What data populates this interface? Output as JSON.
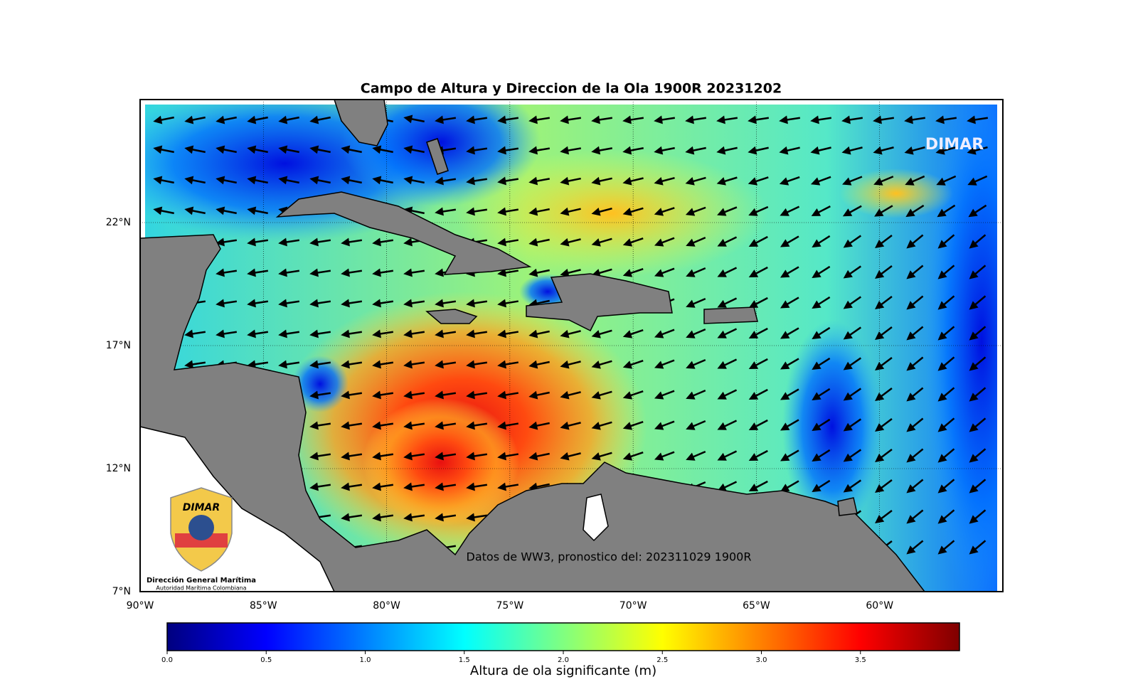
{
  "map": {
    "title": "Campo de Altura y Direccion de la Ola 1900R 20231202",
    "xlim": [
      -90,
      -55
    ],
    "ylim": [
      7,
      27
    ],
    "xticks": [
      {
        "value": -90,
        "label": "90°W"
      },
      {
        "value": -85,
        "label": "85°W"
      },
      {
        "value": -80,
        "label": "80°W"
      },
      {
        "value": -75,
        "label": "75°W"
      },
      {
        "value": -70,
        "label": "70°W"
      },
      {
        "value": -65,
        "label": "65°W"
      },
      {
        "value": -60,
        "label": "60°W"
      }
    ],
    "yticks": [
      {
        "value": 7,
        "label": "7°N"
      },
      {
        "value": 12,
        "label": "12°N"
      },
      {
        "value": 17,
        "label": "17°N"
      },
      {
        "value": 22,
        "label": "22°N"
      }
    ],
    "grid": true,
    "annotation": "Datos de WW3, pronostico del: 202311029 1900R",
    "watermark": "DIMAR",
    "logo": {
      "brand": "DIMAR",
      "name": "Dirección General Marítima",
      "subtitle": "Autoridad Marítima Colombiana"
    },
    "colorbar": {
      "label": "Altura de ola significante (m)",
      "lim": [
        0,
        4
      ],
      "ticks": [
        {
          "value": 0,
          "label": "0.0"
        },
        {
          "value": 0.5,
          "label": "0.5"
        },
        {
          "value": 1,
          "label": "1.0"
        },
        {
          "value": 1.5,
          "label": "1.5"
        },
        {
          "value": 2,
          "label": "2.0"
        },
        {
          "value": 2.5,
          "label": "2.5"
        },
        {
          "value": 3,
          "label": "3.0"
        },
        {
          "value": 3.5,
          "label": "3.5"
        }
      ],
      "colors": [
        "#00007f",
        "#0000ff",
        "#0080ff",
        "#00ffff",
        "#80ff80",
        "#ffff00",
        "#ff8000",
        "#ff0000",
        "#7f0000"
      ]
    }
  }
}
